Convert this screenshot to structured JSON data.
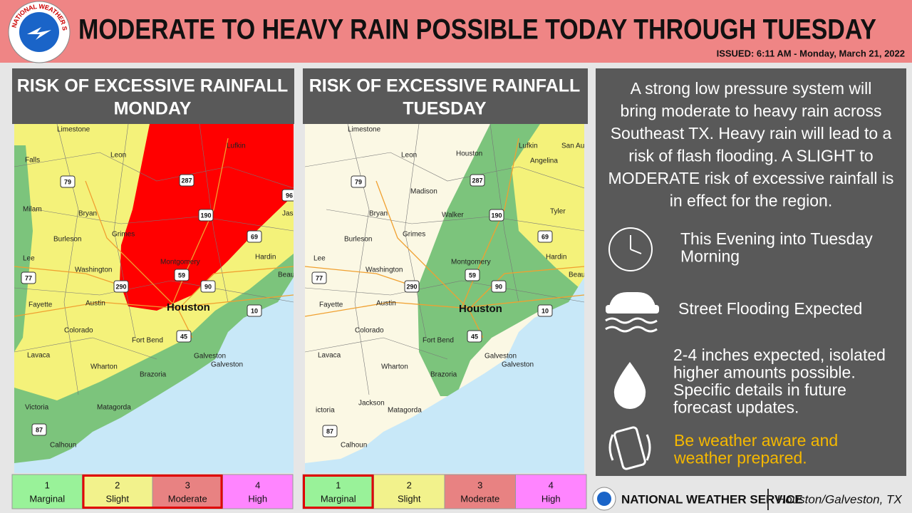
{
  "header": {
    "title": "MODERATE TO HEAVY RAIN POSSIBLE TODAY THROUGH TUESDAY",
    "issued": "ISSUED: 6:11 AM - Monday, March 21, 2022",
    "logo_text": "NATIONAL WEATHER SERVICE"
  },
  "panels": [
    {
      "title_lines": [
        "RISK OF EXCESSIVE RAINFALL",
        "MONDAY"
      ],
      "map_labels": [
        "Limestone",
        "Falls",
        "Leon",
        "Lufkin",
        "79",
        "287",
        "Milam",
        "Bryan",
        "Grimes",
        "190",
        "96",
        "Jasp",
        "69",
        "Burleson",
        "Hardin",
        "Lee",
        "Washington",
        "Montgomery",
        "77",
        "59",
        "290",
        "90",
        "Beaumon",
        "Fayette",
        "Austin",
        "Houston",
        "10",
        "45",
        "Colorado",
        "Fort Bend",
        "Galveston",
        "Galveston",
        "Lavaca",
        "Wharton",
        "Brazoria",
        "Victoria",
        "Matagorda",
        "87",
        "Calhoun"
      ],
      "risk_scale": [
        {
          "level": 1,
          "label": "Marginal",
          "color": "#99f299",
          "highlighted": false
        },
        {
          "level": 2,
          "label": "Slight",
          "color": "#f2f28c",
          "highlighted": true
        },
        {
          "level": 3,
          "label": "Moderate",
          "color": "#e88282",
          "highlighted": true
        },
        {
          "level": 4,
          "label": "High",
          "color": "#ff85ff",
          "highlighted": false
        }
      ]
    },
    {
      "title_lines": [
        "RISK OF EXCESSIVE RAINFALL",
        "TUESDAY"
      ],
      "map_labels": [
        "Limestone",
        "Leon",
        "Houston",
        "Lufkin",
        "San Augusti",
        "Angelina",
        "79",
        "287",
        "Madison",
        "Bryan",
        "Walker",
        "190",
        "Tyler",
        "Grimes",
        "Burleson",
        "69",
        "Hardin",
        "Lee",
        "Washington",
        "Montgomery",
        "77",
        "59",
        "290",
        "90",
        "Beaumon",
        "Fayette",
        "Austin",
        "Houston",
        "10",
        "45",
        "Colorado",
        "Fort Bend",
        "Galveston",
        "Galveston",
        "Lavaca",
        "Wharton",
        "Brazoria",
        "ictoria",
        "Jackson",
        "Matagorda",
        "87",
        "Calhoun"
      ],
      "risk_scale": [
        {
          "level": 1,
          "label": "Marginal",
          "color": "#99f299",
          "highlighted": true
        },
        {
          "level": 2,
          "label": "Slight",
          "color": "#f2f28c",
          "highlighted": false
        },
        {
          "level": 3,
          "label": "Moderate",
          "color": "#e88282",
          "highlighted": false
        },
        {
          "level": 4,
          "label": "High",
          "color": "#ff85ff",
          "highlighted": false
        }
      ]
    }
  ],
  "summary": {
    "description_lines": [
      "A strong low pressure system will",
      "bring moderate to heavy rain across",
      "Southeast TX. Heavy rain will lead to a",
      "risk of flash flooding. A SLIGHT to",
      "MODERATE risk of excessive rainfall is",
      "in effect for the region."
    ],
    "items": [
      {
        "lines": [
          "This Evening into Tuesday",
          "Morning"
        ]
      },
      {
        "lines": [
          "Street Flooding Expected"
        ]
      },
      {
        "lines": [
          "2-4 inches expected, isolated",
          "higher amounts possible.",
          "Specific details in future",
          "forecast updates."
        ]
      },
      {
        "lines": [
          "Be weather aware and",
          "weather prepared."
        ],
        "color": "#f5b800"
      }
    ]
  },
  "footer": {
    "agency": "NATIONAL WEATHER SERVICE",
    "office": "Houston/Galveston, TX"
  }
}
